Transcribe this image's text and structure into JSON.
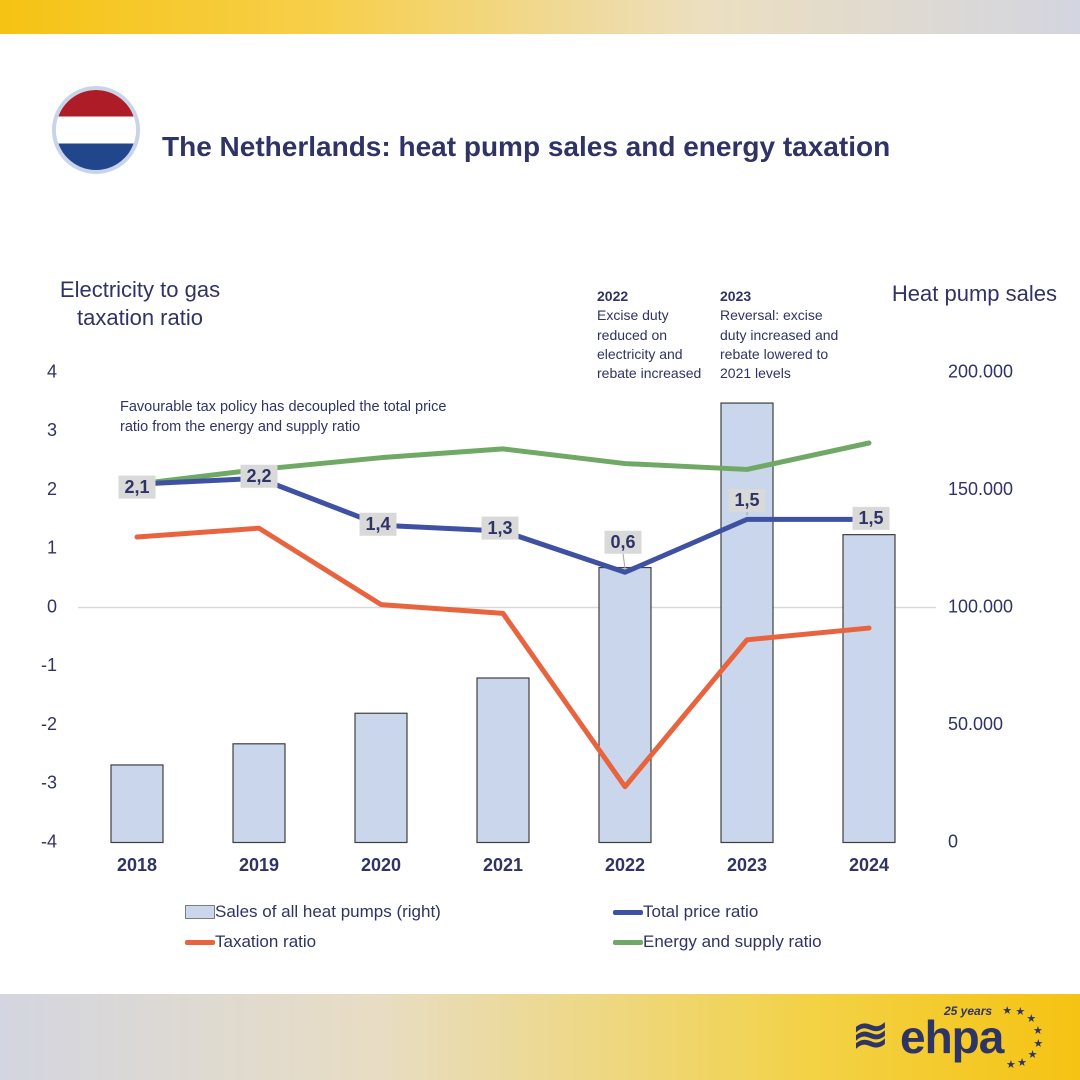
{
  "header": {
    "title": "The Netherlands: heat pump sales and energy taxation",
    "flag": "netherlands-flag"
  },
  "annotations": {
    "decouple_note": "Favourable tax policy has decoupled the total price ratio from the energy and supply ratio",
    "event_2022_year": "2022",
    "event_2022_text": "Excise duty reduced on electricity and rebate increased",
    "event_2023_year": "2023",
    "event_2023_text": "Reversal: excise duty increased and rebate lowered to 2021 levels"
  },
  "chart_data": {
    "type": "combo",
    "categories": [
      "2018",
      "2019",
      "2020",
      "2021",
      "2022",
      "2023",
      "2024"
    ],
    "left_axis": {
      "title_line1": "Electricity to gas",
      "title_line2": "taxation ratio",
      "ticks": [
        4,
        3,
        2,
        1,
        0,
        -1,
        -2,
        -3,
        -4
      ],
      "range": [
        -4,
        4
      ]
    },
    "right_axis": {
      "title": "Heat pump sales",
      "ticks": [
        {
          "label": "200.000",
          "value": 200000
        },
        {
          "label": "150.000",
          "value": 150000
        },
        {
          "label": "100.000",
          "value": 100000
        },
        {
          "label": "50.000",
          "value": 50000
        },
        {
          "label": "0",
          "value": 0
        }
      ],
      "range": [
        0,
        200000
      ]
    },
    "gridline_value": 0,
    "series": [
      {
        "name": "Sales of all heat pumps (right)",
        "type": "bar",
        "axis": "right",
        "values": [
          33000,
          42000,
          55000,
          70000,
          117000,
          187000,
          131000
        ],
        "color": "#c9d6ec",
        "border": "#3f3f3f"
      },
      {
        "name": "Total price ratio",
        "type": "line",
        "axis": "left",
        "values": [
          2.1,
          2.2,
          1.4,
          1.3,
          0.6,
          1.5,
          1.5
        ],
        "labels": [
          "2,1",
          "2,2",
          "1,4",
          "1,3",
          "0,6",
          "1,5",
          "1,5"
        ],
        "label_offsets": [
          [
            0,
            3
          ],
          [
            0,
            -2
          ],
          [
            -3,
            -1
          ],
          [
            -3,
            -3
          ],
          [
            -2,
            -30
          ],
          [
            0,
            -19
          ],
          [
            2,
            -1
          ]
        ],
        "label_leaders": [
          false,
          false,
          false,
          false,
          true,
          true,
          false
        ],
        "color": "#3f51a3"
      },
      {
        "name": "Taxation ratio",
        "type": "line",
        "axis": "left",
        "values": [
          1.2,
          1.35,
          0.05,
          -0.1,
          -3.05,
          -0.55,
          -0.35
        ],
        "color": "#e8643f"
      },
      {
        "name": "Energy and supply ratio",
        "type": "line",
        "axis": "left",
        "values": [
          2.1,
          2.35,
          2.55,
          2.7,
          2.45,
          2.35,
          2.8
        ],
        "color": "#70a865"
      }
    ],
    "legend": [
      {
        "swatch": "bar",
        "color": "#c9d6ec",
        "label": "Sales of all heat pumps (right)"
      },
      {
        "swatch": "line",
        "color": "#3f51a3",
        "label": "Total price ratio"
      },
      {
        "swatch": "line",
        "color": "#e8643f",
        "label": "Taxation ratio"
      },
      {
        "swatch": "line",
        "color": "#70a865",
        "label": "Energy and supply ratio"
      }
    ],
    "label_box_color": "#d9d9d9",
    "grid_color": "#d9d9d9",
    "text_color": "#2f3365"
  },
  "footer": {
    "logo_text": "ehpa",
    "logo_tagline": "25 years",
    "logo_waves": "≋"
  }
}
